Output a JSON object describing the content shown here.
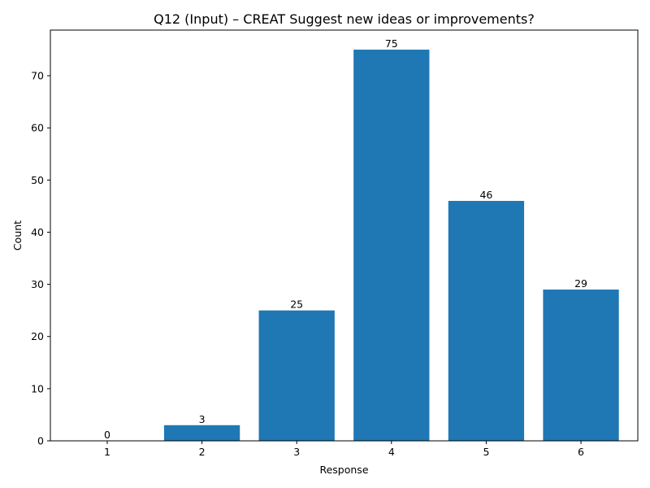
{
  "chart_data": {
    "type": "bar",
    "title": "Q12 (Input) – CREAT Suggest new ideas or improvements?",
    "xlabel": "Response",
    "ylabel": "Count",
    "categories": [
      "1",
      "2",
      "3",
      "4",
      "5",
      "6"
    ],
    "values": [
      0,
      3,
      25,
      75,
      46,
      29
    ],
    "ylim": [
      0,
      78.75
    ],
    "yticks": [
      0,
      10,
      20,
      30,
      40,
      50,
      60,
      70
    ],
    "bar_color": "#1f77b4",
    "grid": false,
    "legend": "none"
  }
}
